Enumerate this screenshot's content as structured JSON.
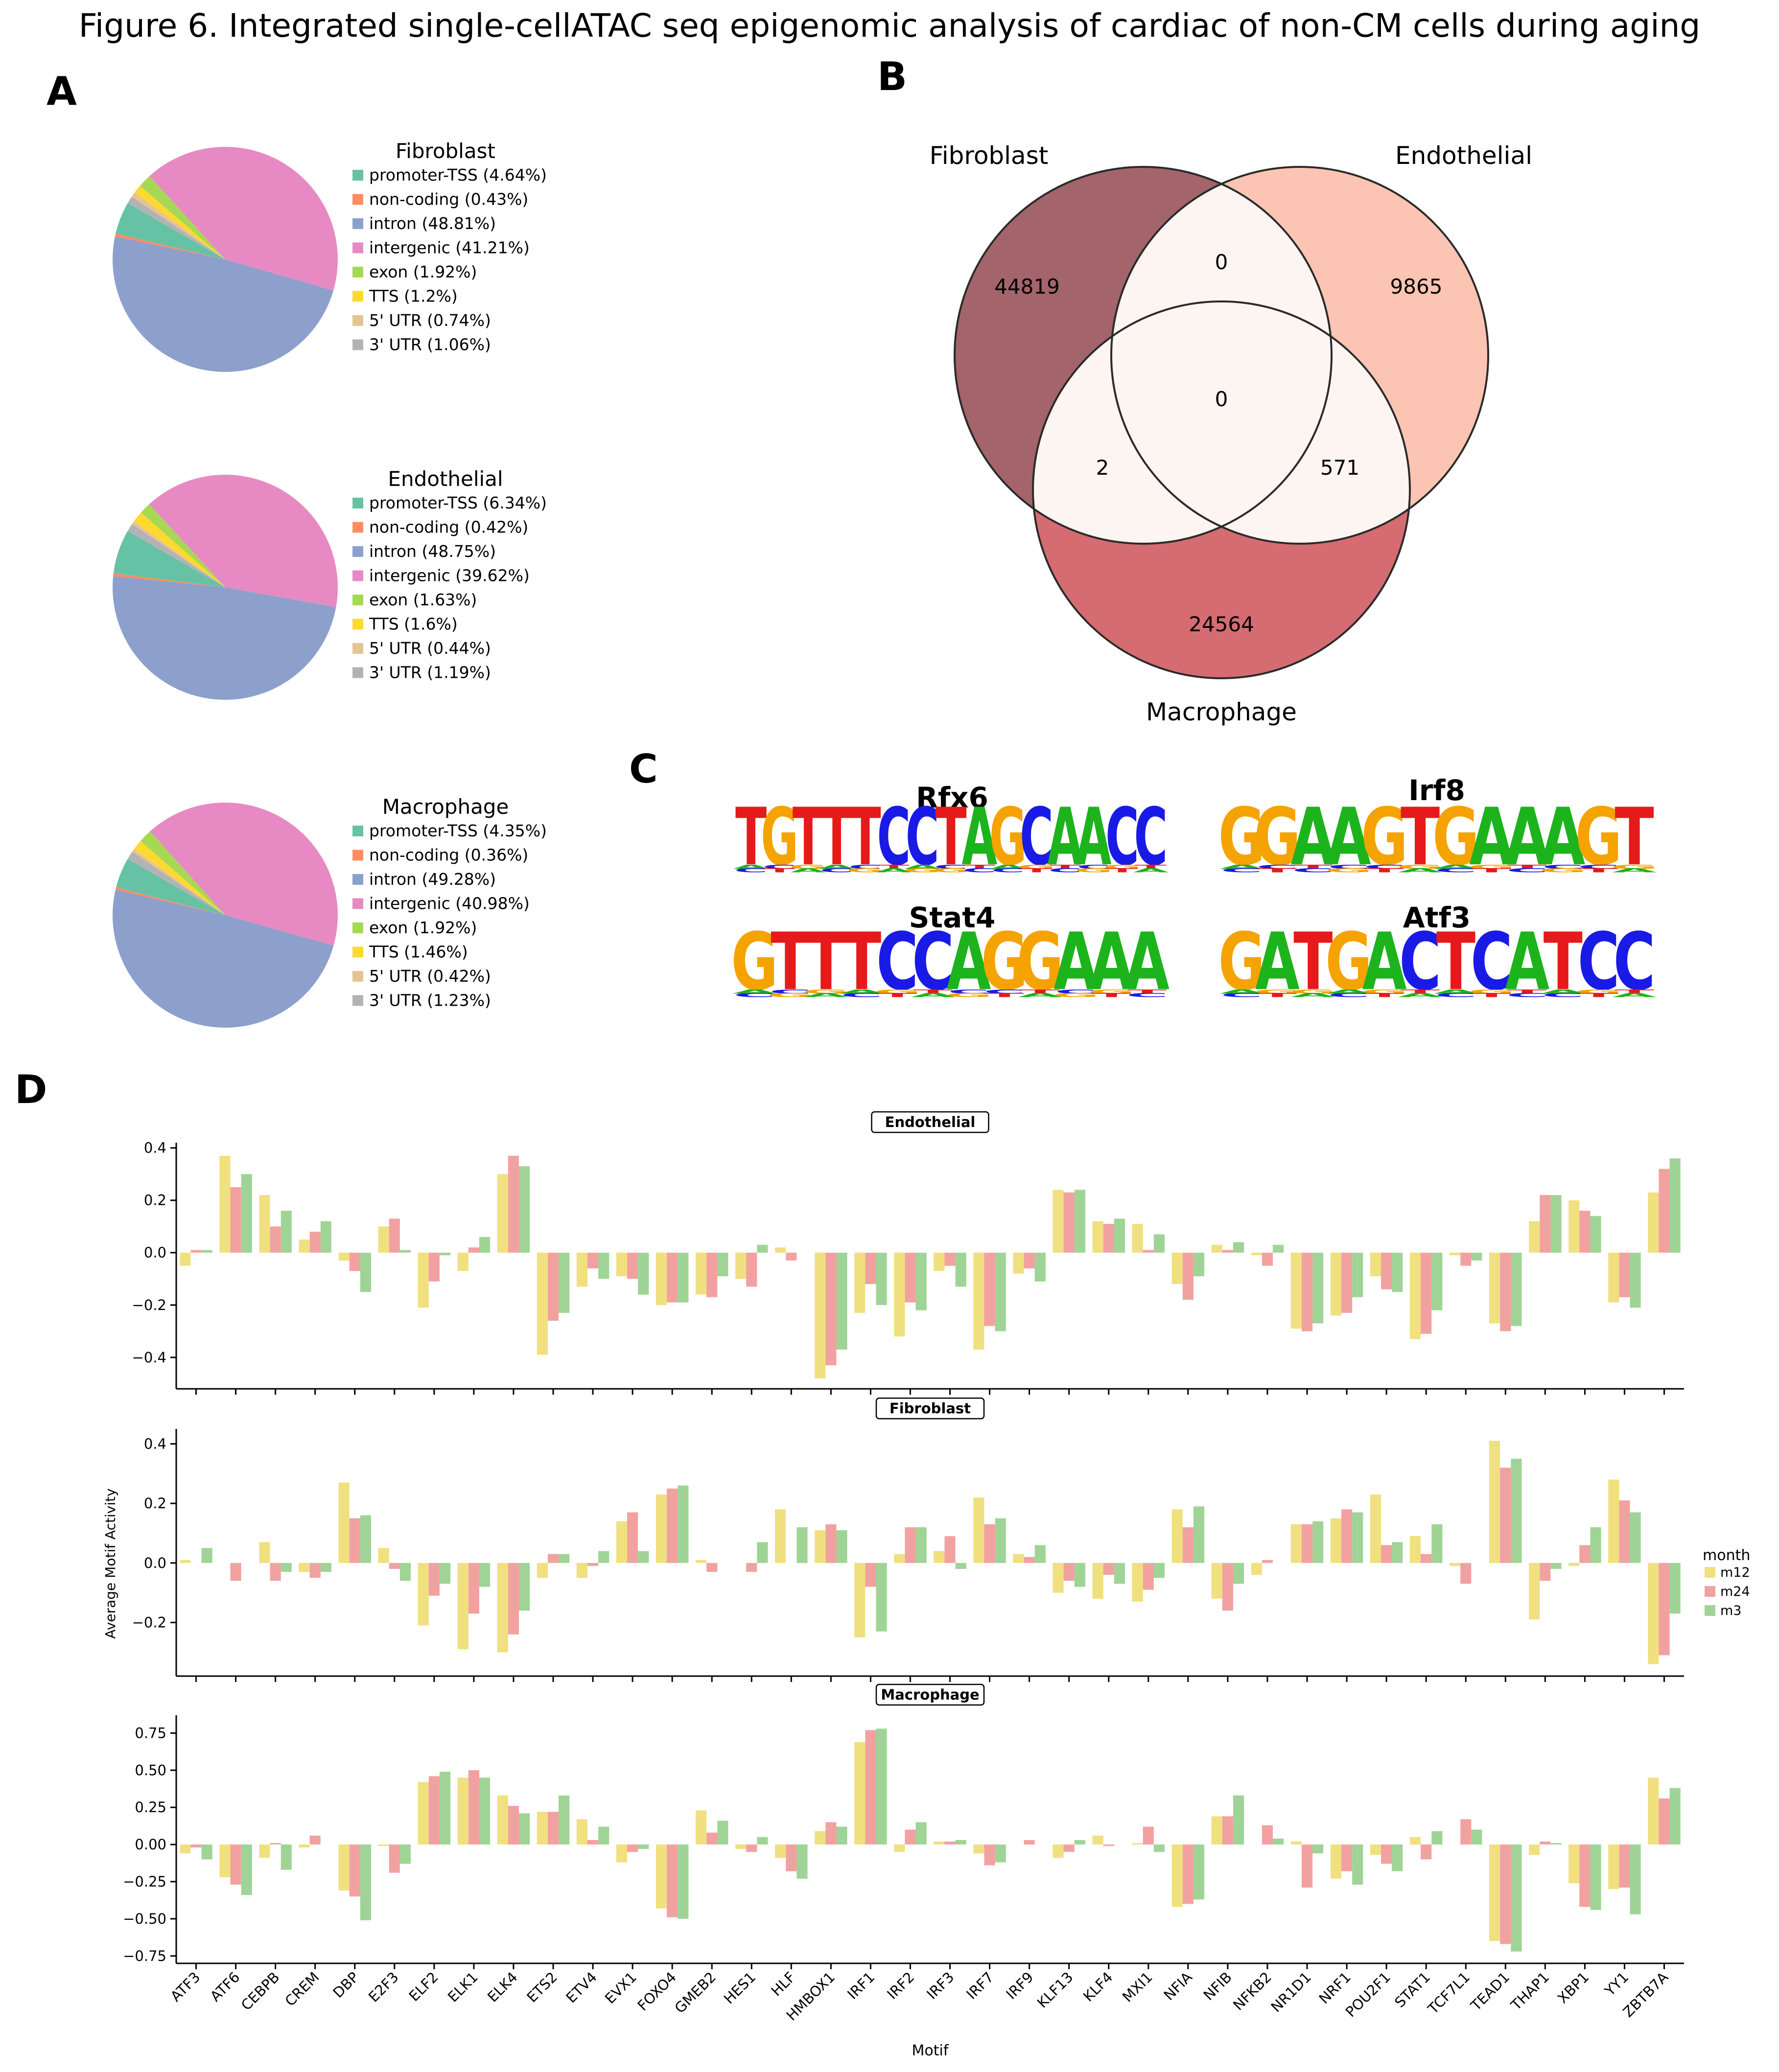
{
  "figure_title": "Figure 6. Integrated single-cellATAC seq epigenomic analysis of cardiac of non-CM cells during aging",
  "panel_labels": {
    "a": "A",
    "b": "B",
    "c": "C",
    "d": "D"
  },
  "colors": {
    "promoter_tss": "#66c2a5",
    "non_coding": "#fc8d62",
    "intron": "#8da0cb",
    "intergenic": "#e78ac3",
    "exon": "#a6d854",
    "tts": "#ffd92f",
    "utr5": "#e5c494",
    "utr3": "#b3b3b3",
    "venn_fibroblast": "#a3646b",
    "venn_endothelial": "#fbc4b3",
    "venn_macrophage": "#d46c72",
    "venn_overlap": "#fdf5f1",
    "m12": "#f0e07f",
    "m24": "#f2a1a1",
    "m3": "#9fd496"
  },
  "chart_data": [
    {
      "type": "pie",
      "title": "Fibroblast",
      "labels": [
        "promoter-TSS (4.64%)",
        "non-coding (0.43%)",
        "intron (48.81%)",
        "intergenic (41.21%)",
        "exon (1.92%)",
        "TTS (1.2%)",
        "5' UTR (0.74%)",
        "3' UTR (1.06%)"
      ],
      "values": [
        4.64,
        0.43,
        48.81,
        41.21,
        1.92,
        1.2,
        0.74,
        1.06
      ]
    },
    {
      "type": "pie",
      "title": "Endothelial",
      "labels": [
        "promoter-TSS (6.34%)",
        "non-coding (0.42%)",
        "intron (48.75%)",
        "intergenic (39.62%)",
        "exon (1.63%)",
        "TTS (1.6%)",
        "5' UTR (0.44%)",
        "3' UTR (1.19%)"
      ],
      "values": [
        6.34,
        0.42,
        48.75,
        39.62,
        1.63,
        1.6,
        0.44,
        1.19
      ]
    },
    {
      "type": "pie",
      "title": "Macrophage",
      "labels": [
        "promoter-TSS (4.35%)",
        "non-coding (0.36%)",
        "intron (49.28%)",
        "intergenic (40.98%)",
        "exon (1.92%)",
        "TTS (1.46%)",
        "5' UTR (0.42%)",
        "3' UTR (1.23%)"
      ],
      "values": [
        4.35,
        0.36,
        49.28,
        40.98,
        1.92,
        1.46,
        0.42,
        1.23
      ]
    },
    {
      "type": "venn",
      "sets": [
        "Fibroblast",
        "Endothelial",
        "Macrophage"
      ],
      "regions": {
        "fibroblast_only": "44819",
        "endothelial_only": "9865",
        "macrophage_only": "24564",
        "fibroblast_endothelial": "0",
        "fibroblast_macrophage": "2",
        "endothelial_macrophage": "571",
        "all_three": "0"
      }
    },
    {
      "type": "sequence_logo",
      "motifs": [
        {
          "name": "Rfx6",
          "consensus": "TGTTTCCTAGCAACC"
        },
        {
          "name": "Irf8",
          "consensus": "GGAAGTGAAAGT"
        },
        {
          "name": "Stat4",
          "consensus": "GTTTCCAGGAAA"
        },
        {
          "name": "Atf3",
          "consensus": "GATGACTCATCC"
        }
      ]
    },
    {
      "type": "bar",
      "xlabel": "Motif",
      "ylabel": "Average Motif Activity",
      "legend_title": "month",
      "legend_position": "right",
      "categories": [
        "ATF3",
        "ATF6",
        "CEBPB",
        "CREM",
        "DBP",
        "E2F3",
        "ELF2",
        "ELK1",
        "ELK4",
        "ETS2",
        "ETV4",
        "EVX1",
        "FOXO4",
        "GMEB2",
        "HES1",
        "HLF",
        "HMBOX1",
        "IRF1",
        "IRF2",
        "IRF3",
        "IRF7",
        "IRF9",
        "KLF13",
        "KLF4",
        "MXI1",
        "NFIA",
        "NFIB",
        "NFKB2",
        "NR1D1",
        "NRF1",
        "POU2F1",
        "STAT1",
        "TCF7L1",
        "TEAD1",
        "THAP1",
        "XBP1",
        "YY1",
        "ZBTB7A"
      ],
      "series_names": [
        "m12",
        "m24",
        "m3"
      ],
      "panels": [
        {
          "title": "Endothelial",
          "ylim": [
            -0.52,
            0.42
          ],
          "yticks": [
            -0.4,
            -0.2,
            0.0,
            0.2,
            0.4
          ],
          "ytick_labels": [
            "−0.4",
            "−0.2",
            "0.0",
            "0.2",
            "0.4"
          ],
          "series": [
            {
              "name": "m12",
              "values": [
                -0.05,
                0.37,
                0.22,
                0.05,
                -0.03,
                0.1,
                -0.21,
                -0.07,
                0.3,
                -0.39,
                -0.13,
                -0.09,
                -0.2,
                -0.16,
                -0.1,
                0.02,
                -0.48,
                -0.23,
                -0.32,
                -0.07,
                -0.37,
                -0.08,
                0.24,
                0.12,
                0.11,
                -0.12,
                0.03,
                -0.01,
                -0.29,
                -0.24,
                -0.09,
                -0.33,
                -0.01,
                -0.27,
                0.12,
                0.2,
                -0.19,
                0.23
              ]
            },
            {
              "name": "m24",
              "values": [
                0.01,
                0.25,
                0.1,
                0.08,
                -0.07,
                0.13,
                -0.11,
                0.02,
                0.37,
                -0.26,
                -0.06,
                -0.1,
                -0.19,
                -0.17,
                -0.13,
                -0.03,
                -0.43,
                -0.12,
                -0.19,
                -0.05,
                -0.28,
                -0.06,
                0.23,
                0.11,
                0.01,
                -0.18,
                0.01,
                -0.05,
                -0.3,
                -0.23,
                -0.14,
                -0.31,
                -0.05,
                -0.3,
                0.22,
                0.16,
                -0.17,
                0.32
              ]
            },
            {
              "name": "m3",
              "values": [
                0.01,
                0.3,
                0.16,
                0.12,
                -0.15,
                0.01,
                -0.01,
                0.06,
                0.33,
                -0.23,
                -0.1,
                -0.16,
                -0.19,
                -0.09,
                0.03,
                0.0,
                -0.37,
                -0.2,
                -0.22,
                -0.13,
                -0.3,
                -0.11,
                0.24,
                0.13,
                0.07,
                -0.09,
                0.04,
                0.03,
                -0.27,
                -0.17,
                -0.15,
                -0.22,
                -0.03,
                -0.28,
                0.22,
                0.14,
                -0.21,
                0.36
              ]
            }
          ]
        },
        {
          "title": "Fibroblast",
          "ylim": [
            -0.38,
            0.45
          ],
          "yticks": [
            -0.2,
            0.0,
            0.2,
            0.4
          ],
          "ytick_labels": [
            "−0.2",
            "0.0",
            "0.2",
            "0.4"
          ],
          "series": [
            {
              "name": "m12",
              "values": [
                0.01,
                0.0,
                0.07,
                -0.03,
                0.27,
                0.05,
                -0.21,
                -0.29,
                -0.3,
                -0.05,
                -0.05,
                0.14,
                0.23,
                0.01,
                0.0,
                0.18,
                0.11,
                -0.25,
                0.03,
                0.04,
                0.22,
                0.03,
                -0.1,
                -0.12,
                -0.13,
                0.18,
                -0.12,
                -0.04,
                0.13,
                0.15,
                0.23,
                0.09,
                -0.01,
                0.41,
                -0.19,
                -0.01,
                0.28,
                -0.34
              ]
            },
            {
              "name": "m24",
              "values": [
                0.0,
                -0.06,
                -0.06,
                -0.05,
                0.15,
                -0.02,
                -0.11,
                -0.17,
                -0.24,
                0.03,
                -0.01,
                0.17,
                0.25,
                -0.03,
                -0.03,
                0.0,
                0.13,
                -0.08,
                0.12,
                0.09,
                0.13,
                0.02,
                -0.06,
                -0.04,
                -0.09,
                0.12,
                -0.16,
                0.01,
                0.13,
                0.18,
                0.06,
                0.03,
                -0.07,
                0.32,
                -0.06,
                0.06,
                0.21,
                -0.31
              ]
            },
            {
              "name": "m3",
              "values": [
                0.05,
                0.0,
                -0.03,
                -0.03,
                0.16,
                -0.06,
                -0.07,
                -0.08,
                -0.16,
                0.03,
                0.04,
                0.04,
                0.26,
                0.0,
                0.07,
                0.12,
                0.11,
                -0.23,
                0.12,
                -0.02,
                0.15,
                0.06,
                -0.08,
                -0.07,
                -0.05,
                0.19,
                -0.07,
                0.0,
                0.14,
                0.17,
                0.07,
                0.13,
                0.0,
                0.35,
                -0.02,
                0.12,
                0.17,
                -0.17
              ]
            }
          ]
        },
        {
          "title": "Macrophage",
          "ylim": [
            -0.8,
            0.87
          ],
          "yticks": [
            -0.75,
            -0.5,
            -0.25,
            0.0,
            0.25,
            0.5,
            0.75
          ],
          "ytick_labels": [
            "−0.75",
            "−0.50",
            "−0.25",
            "0.00",
            "0.25",
            "0.50",
            "0.75"
          ],
          "series": [
            {
              "name": "m12",
              "values": [
                -0.06,
                -0.22,
                -0.09,
                -0.02,
                -0.31,
                -0.01,
                0.42,
                0.45,
                0.33,
                0.22,
                0.17,
                -0.12,
                -0.43,
                0.23,
                -0.03,
                -0.09,
                0.09,
                0.69,
                -0.05,
                0.02,
                -0.06,
                0.0,
                -0.09,
                0.06,
                0.01,
                -0.42,
                0.19,
                0.0,
                0.02,
                -0.23,
                -0.07,
                0.05,
                0.0,
                -0.65,
                -0.07,
                -0.26,
                -0.3,
                0.45
              ]
            },
            {
              "name": "m24",
              "values": [
                -0.02,
                -0.27,
                0.01,
                0.06,
                -0.35,
                -0.19,
                0.46,
                0.5,
                0.26,
                0.22,
                0.03,
                -0.05,
                -0.49,
                0.08,
                -0.05,
                -0.18,
                0.15,
                0.77,
                0.1,
                0.02,
                -0.14,
                0.03,
                -0.05,
                -0.01,
                0.12,
                -0.4,
                0.19,
                0.13,
                -0.29,
                -0.18,
                -0.13,
                -0.1,
                0.17,
                -0.67,
                0.02,
                -0.42,
                -0.29,
                0.31
              ]
            },
            {
              "name": "m3",
              "values": [
                -0.1,
                -0.34,
                -0.17,
                0.0,
                -0.51,
                -0.13,
                0.49,
                0.45,
                0.21,
                0.33,
                0.12,
                -0.03,
                -0.5,
                0.16,
                0.05,
                -0.23,
                0.12,
                0.78,
                0.15,
                0.03,
                -0.12,
                0.0,
                0.03,
                0.0,
                -0.05,
                -0.37,
                0.33,
                0.04,
                -0.06,
                -0.27,
                -0.18,
                0.09,
                0.1,
                -0.72,
                0.01,
                -0.44,
                -0.47,
                0.38
              ]
            }
          ]
        }
      ]
    }
  ]
}
